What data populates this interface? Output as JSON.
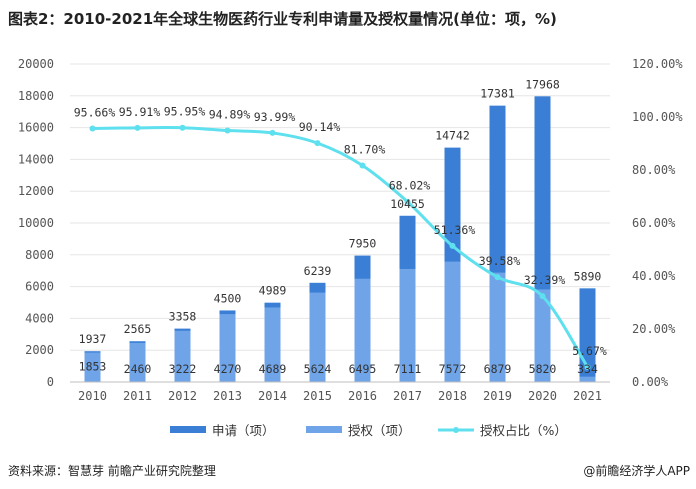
{
  "title": "图表2：2010-2021年全球生物医药行业专利申请量及授权量情况(单位：项，%)",
  "footer": {
    "source": "资料来源：智慧芽 前瞻产业研究院整理",
    "brand": "@前瞻经济学人APP"
  },
  "colors": {
    "applications": "#3a7fd5",
    "grants": "#6fa5e8",
    "ratio_line": "#5ee0ee",
    "grid": "#e6e6e6"
  },
  "chart_data": {
    "type": "bar",
    "title": "2010-2021年全球生物医药行业专利申请量及授权量情况(单位：项，%)",
    "categories": [
      "2010",
      "2011",
      "2012",
      "2013",
      "2014",
      "2015",
      "2016",
      "2017",
      "2018",
      "2019",
      "2020",
      "2021"
    ],
    "series": [
      {
        "name": "申请（项）",
        "type": "bar",
        "values": [
          1937,
          2565,
          3358,
          4500,
          4989,
          6239,
          7950,
          10455,
          14742,
          17381,
          17968,
          5890
        ]
      },
      {
        "name": "授权（项）",
        "type": "bar",
        "values": [
          1853,
          2460,
          3222,
          4270,
          4689,
          5624,
          6495,
          7111,
          7572,
          6879,
          5820,
          334
        ]
      },
      {
        "name": "授权占比（%）",
        "type": "line",
        "axis": "right",
        "values": [
          95.66,
          95.91,
          95.95,
          94.89,
          93.99,
          90.14,
          81.7,
          68.02,
          51.36,
          39.58,
          32.39,
          5.67
        ],
        "labels": [
          "95.66%",
          "95.91%",
          "95.95%",
          "94.89%",
          "93.99%",
          "90.14%",
          "81.70%",
          "68.02%",
          "51.36%",
          "39.58%",
          "32.39%",
          "5.67%"
        ]
      }
    ],
    "ylim_left": [
      0,
      20000
    ],
    "yticks_left": [
      "0",
      "2000",
      "4000",
      "6000",
      "8000",
      "10000",
      "12000",
      "14000",
      "16000",
      "18000",
      "20000"
    ],
    "ylim_right": [
      0,
      120
    ],
    "yticks_right": [
      "0.00%",
      "20.00%",
      "40.00%",
      "60.00%",
      "80.00%",
      "100.00%",
      "120.00%"
    ],
    "legend": [
      "申请（项）",
      "授权（项）",
      "授权占比（%）"
    ],
    "legend_position": "bottom",
    "grid": true
  }
}
